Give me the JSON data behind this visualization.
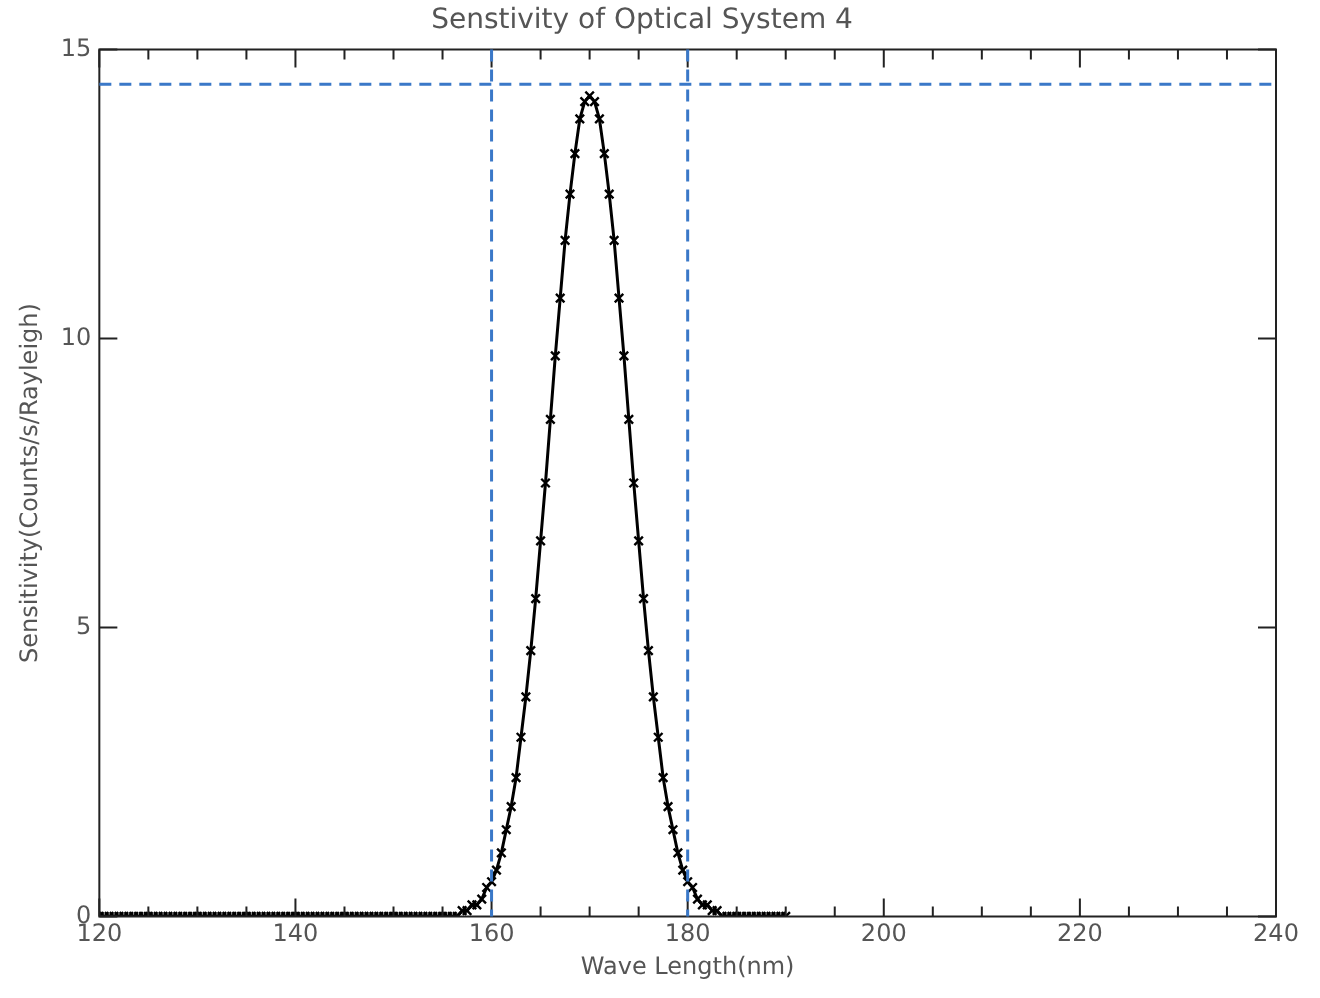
{
  "chart_data": {
    "type": "line",
    "title": "Senstivity of Optical System 4",
    "xlabel": "Wave Length(nm)",
    "ylabel": "Sensitivity(Counts/s/Rayleigh)",
    "xlim": [
      120,
      240
    ],
    "xticks": [
      120,
      {
        "value": 125,
        "label": null
      },
      {
        "value": 130,
        "label": null
      },
      {
        "value": 135,
        "label": null
      },
      140,
      {
        "value": 145,
        "label": null
      },
      {
        "value": 150,
        "label": null
      },
      {
        "value": 155,
        "label": null
      },
      160,
      {
        "value": 165,
        "label": null
      },
      {
        "value": 170,
        "label": null
      },
      {
        "value": 175,
        "label": null
      },
      180,
      {
        "value": 185,
        "label": null
      },
      {
        "value": 190,
        "label": null
      },
      {
        "value": 195,
        "label": null
      },
      200,
      {
        "value": 205,
        "label": null
      },
      {
        "value": 210,
        "label": null
      },
      {
        "value": 215,
        "label": null
      },
      220,
      {
        "value": 225,
        "label": null
      },
      {
        "value": 230,
        "label": null
      },
      {
        "value": 235,
        "label": null
      },
      240
    ],
    "ylim": [
      0,
      15
    ],
    "yticks": [
      0,
      5,
      10,
      15
    ],
    "grid": false,
    "legend": false,
    "marker": "cross",
    "line_style": "solid",
    "series": [
      {
        "color": "#000000",
        "x": [
          120,
          120.5,
          121,
          121.5,
          122,
          122.5,
          123,
          123.5,
          124,
          124.5,
          125,
          125.5,
          126,
          126.5,
          127,
          127.5,
          128,
          128.5,
          129,
          129.5,
          130,
          130.5,
          131,
          131.5,
          132,
          132.5,
          133,
          133.5,
          134,
          134.5,
          135,
          135.5,
          136,
          136.5,
          137,
          137.5,
          138,
          138.5,
          139,
          139.5,
          140,
          140.5,
          141,
          141.5,
          142,
          142.5,
          143,
          143.5,
          144,
          144.5,
          145,
          145.5,
          146,
          146.5,
          147,
          147.5,
          148,
          148.5,
          149,
          149.5,
          150,
          150.5,
          151,
          151.5,
          152,
          152.5,
          153,
          153.5,
          154,
          154.5,
          155,
          155.5,
          156,
          156.5,
          157,
          157.5,
          158,
          158.5,
          159,
          159.5,
          160,
          160.5,
          161,
          161.5,
          162,
          162.5,
          163,
          163.5,
          164,
          164.5,
          165,
          165.5,
          166,
          166.5,
          167,
          167.5,
          168,
          168.5,
          169,
          169.5,
          170,
          170.5,
          171,
          171.5,
          172,
          172.5,
          173,
          173.5,
          174,
          174.5,
          175,
          175.5,
          176,
          176.5,
          177,
          177.5,
          178,
          178.5,
          179,
          179.5,
          180,
          180.5,
          181,
          181.5,
          182,
          182.5,
          183,
          183.5,
          184,
          184.5,
          185,
          185.5,
          186,
          186.5,
          187,
          187.5,
          188,
          188.5,
          189,
          189.5,
          190
        ],
        "values": [
          0,
          0,
          0,
          0,
          0,
          0,
          0,
          0,
          0,
          0,
          0,
          0,
          0,
          0,
          0,
          0,
          0,
          0,
          0,
          0,
          0,
          0,
          0,
          0,
          0,
          0,
          0,
          0,
          0,
          0,
          0,
          0,
          0,
          0,
          0,
          0,
          0,
          0,
          0,
          0,
          0,
          0,
          0,
          0,
          0,
          0,
          0,
          0,
          0,
          0,
          0,
          0,
          0,
          0,
          0,
          0,
          0,
          0,
          0,
          0,
          0,
          0,
          0,
          0,
          0,
          0,
          0,
          0,
          0,
          0,
          0,
          0,
          0,
          0,
          0.1,
          0.1,
          0.2,
          0.2,
          0.3,
          0.5,
          0.6,
          0.8,
          1.1,
          1.5,
          1.9,
          2.4,
          3.1,
          3.8,
          4.6,
          5.5,
          6.5,
          7.5,
          8.6,
          9.7,
          10.7,
          11.7,
          12.5,
          13.2,
          13.8,
          14.1,
          14.2,
          14.1,
          13.8,
          13.2,
          12.5,
          11.7,
          10.7,
          9.7,
          8.6,
          7.5,
          6.5,
          5.5,
          4.6,
          3.8,
          3.1,
          2.4,
          1.9,
          1.5,
          1.1,
          0.8,
          0.6,
          0.5,
          0.3,
          0.2,
          0.2,
          0.1,
          0.1,
          0,
          0,
          0,
          0,
          0,
          0,
          0,
          0,
          0,
          0,
          0,
          0,
          0,
          0
        ]
      }
    ],
    "ref_lines": [
      {
        "axis": "x",
        "value": 160,
        "color": "#3a78c8",
        "line_style": "dashed"
      },
      {
        "axis": "x",
        "value": 180,
        "color": "#3a78c8",
        "line_style": "dashed"
      },
      {
        "axis": "y",
        "value": 14.4,
        "color": "#3a78c8",
        "line_style": "dashed"
      }
    ]
  }
}
